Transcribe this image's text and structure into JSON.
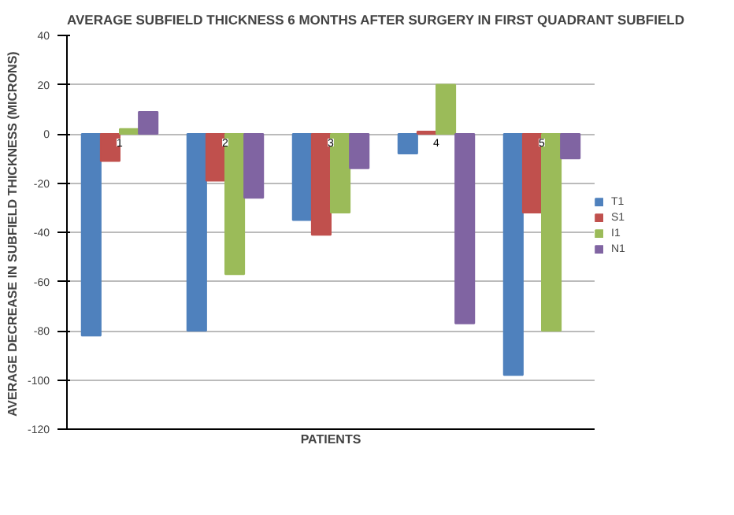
{
  "chart_data": {
    "type": "bar",
    "title": "AVERAGE  SUBFIELD THICKNESS 6 MONTHS AFTER SURGERY IN FIRST QUADRANT SUBFIELD",
    "xlabel": "PATIENTS",
    "ylabel": "AVERAGE DECREASE IN  SUBFIELD THICKNESS (MICRONS)",
    "categories": [
      "1",
      "2",
      "3",
      "4",
      "5"
    ],
    "series": [
      {
        "name": "T1",
        "color": "#4f81bd",
        "values": [
          -82,
          -80,
          -35,
          -8,
          -98
        ]
      },
      {
        "name": "S1",
        "color": "#c0504d",
        "values": [
          -11,
          -19,
          -41,
          1,
          -32
        ]
      },
      {
        "name": "I1",
        "color": "#9bbb59",
        "values": [
          2,
          -57,
          -32,
          20,
          -80
        ]
      },
      {
        "name": "N1",
        "color": "#8064a2",
        "values": [
          9,
          -26,
          -14,
          -77,
          -10
        ]
      }
    ],
    "ylim": [
      -120,
      40
    ],
    "yticks": [
      -120,
      -100,
      -80,
      -60,
      -40,
      -20,
      0,
      20,
      40
    ],
    "grid": "y",
    "legend": "right"
  }
}
